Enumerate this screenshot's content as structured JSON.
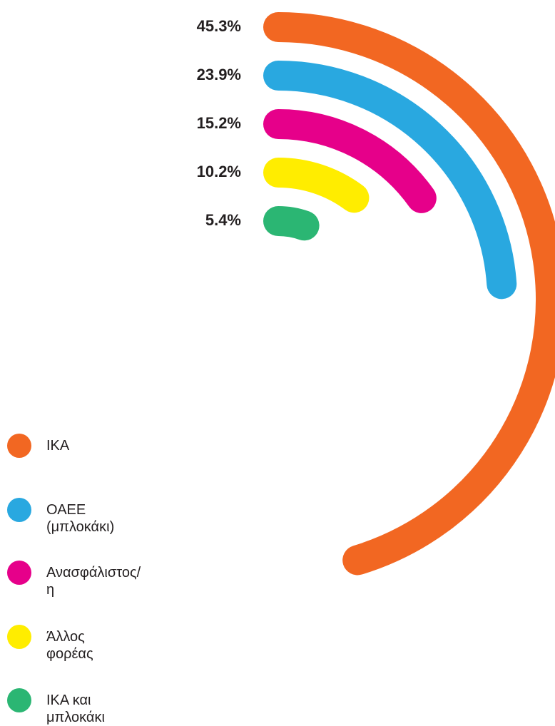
{
  "chart_data": {
    "type": "radial_bar",
    "categories": [
      "ΙΚΑ",
      "ΟΑΕΕ\n(μπλοκάκι)",
      "Ανασφάλιστος/η",
      "Άλλος φορέας",
      "ΙΚΑ και μπλοκάκι"
    ],
    "values": [
      45.3,
      23.9,
      15.2,
      10.2,
      5.4
    ],
    "value_labels": [
      "45.3%",
      "23.9%",
      "15.2%",
      "10.2%",
      "5.4%"
    ],
    "colors": [
      "#f26722",
      "#29a8e0",
      "#e6008a",
      "#ffed00",
      "#2bb673"
    ],
    "legend": "bottom-left"
  }
}
